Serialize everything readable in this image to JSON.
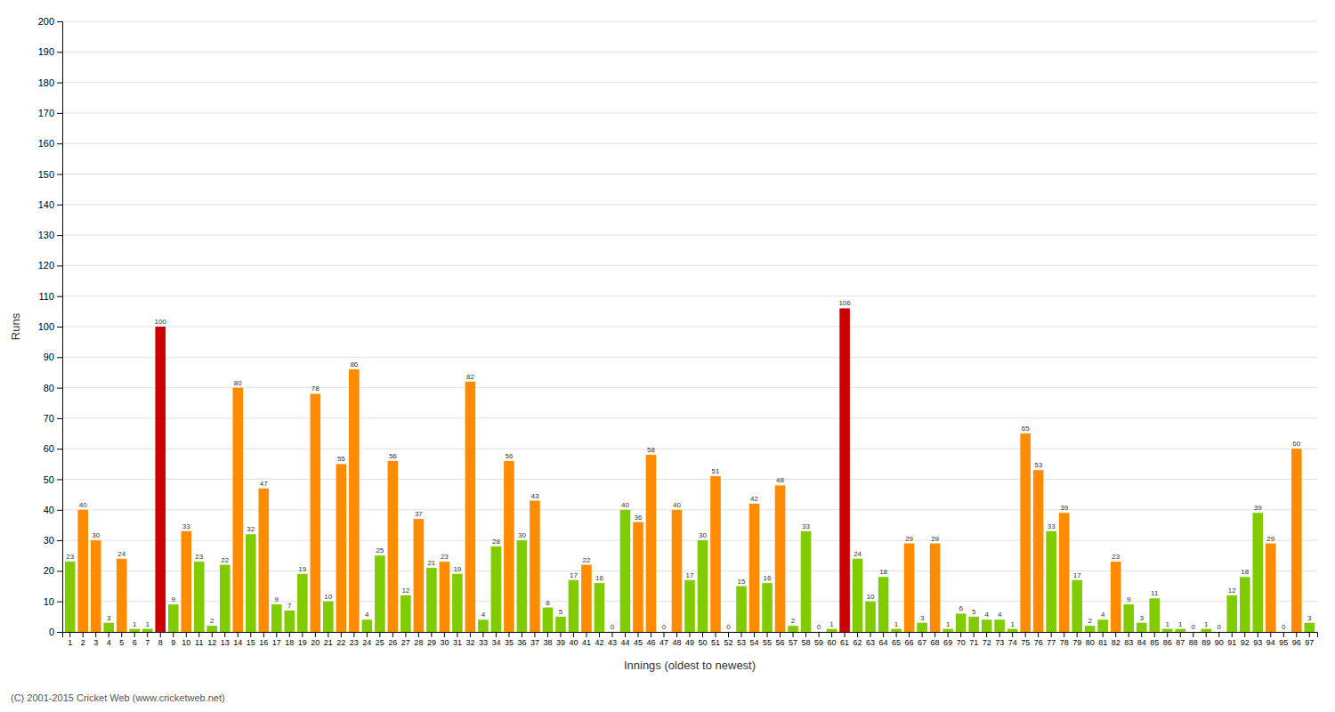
{
  "chart_data": {
    "type": "bar",
    "xlabel": "Innings (oldest to newest)",
    "ylabel": "Runs",
    "categories": [
      "1",
      "2",
      "3",
      "4",
      "5",
      "6",
      "7",
      "8",
      "9",
      "10",
      "11",
      "12",
      "13",
      "14",
      "15",
      "16",
      "17",
      "18",
      "19",
      "20",
      "21",
      "22",
      "23",
      "24",
      "25",
      "26",
      "27",
      "28",
      "29",
      "30",
      "31",
      "32",
      "33",
      "34",
      "35",
      "36",
      "37",
      "38",
      "39",
      "40",
      "41",
      "42",
      "43",
      "44",
      "45",
      "46",
      "47",
      "48",
      "49",
      "50",
      "51",
      "52",
      "53",
      "54",
      "55",
      "56",
      "57",
      "58",
      "59",
      "60",
      "61",
      "62",
      "63",
      "64",
      "65",
      "66",
      "67",
      "68",
      "69",
      "70",
      "71",
      "72",
      "73",
      "74",
      "75",
      "76",
      "77",
      "78",
      "79",
      "80",
      "81",
      "82",
      "83",
      "84",
      "85",
      "86",
      "87",
      "88",
      "89",
      "90",
      "91",
      "92",
      "93",
      "94",
      "95",
      "96",
      "97"
    ],
    "values": [
      23,
      40,
      30,
      3,
      24,
      1,
      1,
      100,
      9,
      33,
      23,
      2,
      22,
      80,
      32,
      47,
      9,
      7,
      19,
      78,
      10,
      55,
      86,
      4,
      25,
      56,
      12,
      37,
      21,
      23,
      19,
      82,
      4,
      28,
      56,
      30,
      43,
      8,
      5,
      17,
      22,
      16,
      0,
      40,
      36,
      58,
      0,
      40,
      17,
      30,
      51,
      0,
      15,
      42,
      16,
      48,
      2,
      33,
      0,
      1,
      106,
      24,
      10,
      18,
      1,
      29,
      3,
      29,
      1,
      6,
      5,
      4,
      4,
      1,
      65,
      53,
      33,
      39,
      17,
      2,
      4,
      23,
      9,
      3,
      11,
      1,
      1,
      0,
      1,
      0,
      12,
      18,
      39,
      29,
      0,
      60,
      3
    ],
    "colors": [
      "#80cc00",
      "#ff8c00",
      "#ff8c00",
      "#80cc00",
      "#ff8c00",
      "#80cc00",
      "#80cc00",
      "#cc0000",
      "#80cc00",
      "#ff8c00",
      "#80cc00",
      "#80cc00",
      "#80cc00",
      "#ff8c00",
      "#80cc00",
      "#ff8c00",
      "#80cc00",
      "#80cc00",
      "#80cc00",
      "#ff8c00",
      "#80cc00",
      "#ff8c00",
      "#ff8c00",
      "#80cc00",
      "#80cc00",
      "#ff8c00",
      "#80cc00",
      "#ff8c00",
      "#80cc00",
      "#ff8c00",
      "#80cc00",
      "#ff8c00",
      "#80cc00",
      "#80cc00",
      "#ff8c00",
      "#80cc00",
      "#ff8c00",
      "#80cc00",
      "#80cc00",
      "#80cc00",
      "#ff8c00",
      "#80cc00",
      "#80cc00",
      "#80cc00",
      "#ff8c00",
      "#ff8c00",
      "#80cc00",
      "#ff8c00",
      "#80cc00",
      "#80cc00",
      "#ff8c00",
      "#80cc00",
      "#80cc00",
      "#ff8c00",
      "#80cc00",
      "#ff8c00",
      "#80cc00",
      "#80cc00",
      "#80cc00",
      "#80cc00",
      "#cc0000",
      "#80cc00",
      "#80cc00",
      "#80cc00",
      "#80cc00",
      "#ff8c00",
      "#80cc00",
      "#ff8c00",
      "#80cc00",
      "#80cc00",
      "#80cc00",
      "#80cc00",
      "#80cc00",
      "#80cc00",
      "#ff8c00",
      "#ff8c00",
      "#80cc00",
      "#ff8c00",
      "#80cc00",
      "#80cc00",
      "#80cc00",
      "#ff8c00",
      "#80cc00",
      "#80cc00",
      "#80cc00",
      "#80cc00",
      "#80cc00",
      "#80cc00",
      "#80cc00",
      "#80cc00",
      "#80cc00",
      "#80cc00",
      "#80cc00",
      "#ff8c00",
      "#80cc00",
      "#ff8c00",
      "#80cc00"
    ],
    "ylim": [
      0,
      200
    ],
    "yticks": [
      0,
      10,
      20,
      30,
      40,
      50,
      60,
      70,
      80,
      90,
      100,
      110,
      120,
      130,
      140,
      150,
      160,
      170,
      180,
      190,
      200
    ],
    "grid": true,
    "data_labels": true,
    "annotations": [
      "(C) 2001-2015 Cricket Web (www.cricketweb.net)"
    ]
  }
}
